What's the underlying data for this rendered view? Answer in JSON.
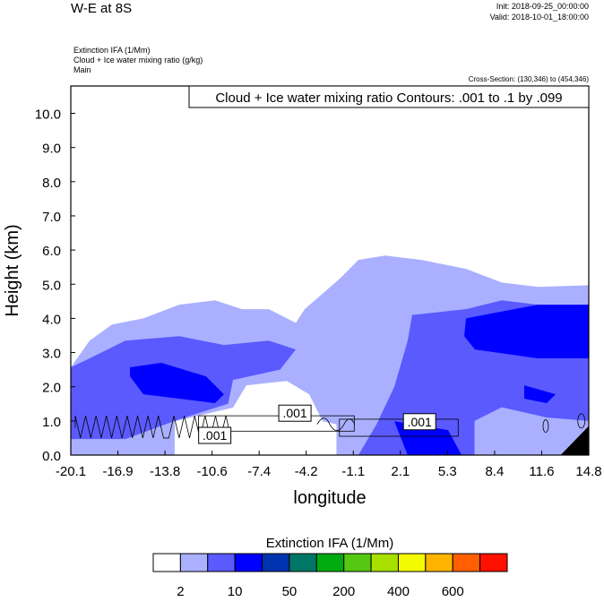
{
  "chart_data": {
    "type": "heatmap",
    "title": "W-E at 8S",
    "init": "Init: 2018-09-25_00:00:00",
    "valid": "Valid: 2018-10-01_18:00:00",
    "fields": [
      "Extinction IFA   (1/Mm)",
      "Cloud + Ice water mixing ratio   (g/kg)",
      "Main"
    ],
    "cross_section": "Cross-Section: (130,346) to (454,346)",
    "contour_info": "Cloud + Ice water mixing ratio Contours: .001 to .1 by .099",
    "xlabel": "longitude",
    "ylabel": "Height (km)",
    "xlim": [
      -20.1,
      14.8
    ],
    "ylim": [
      0,
      10.8
    ],
    "xticks": [
      "-20.1",
      "-16.9",
      "-13.8",
      "-10.6",
      "-7.4",
      "-4.2",
      "-1.1",
      "2.1",
      "5.3",
      "8.4",
      "11.6",
      "14.8"
    ],
    "yticks": [
      "0.0",
      "1.0",
      "2.0",
      "3.0",
      "4.0",
      "5.0",
      "6.0",
      "7.0",
      "8.0",
      "9.0",
      "10.0"
    ],
    "colorbar": {
      "title": "Extinction IFA  (1/Mm)",
      "colors": [
        "#ffffff",
        "#aab0ff",
        "#5a5aff",
        "#0000ff",
        "#0033b0",
        "#007766",
        "#00aa11",
        "#55c811",
        "#a8e000",
        "#f4fa00",
        "#ffb400",
        "#ff5f00",
        "#ff1100"
      ],
      "labels": [
        "2",
        "10",
        "50",
        "200",
        "400",
        "600"
      ]
    },
    "filled_regions": [
      {
        "level": "2-10",
        "color": "#aab0ff",
        "points": [
          [
            -20.1,
            0
          ],
          [
            -20.1,
            2.57
          ],
          [
            -18.83,
            3.35
          ],
          [
            -17.32,
            3.82
          ],
          [
            -15.21,
            4.0
          ],
          [
            -12.79,
            4.4
          ],
          [
            -10.38,
            4.53
          ],
          [
            -8.57,
            4.27
          ],
          [
            -6.76,
            4.27
          ],
          [
            -4.94,
            3.87
          ],
          [
            -4.34,
            4.27
          ],
          [
            -1.93,
            5.18
          ],
          [
            -0.72,
            5.71
          ],
          [
            1.09,
            5.84
          ],
          [
            3.51,
            5.71
          ],
          [
            6.53,
            5.45
          ],
          [
            8.94,
            5.05
          ],
          [
            11.36,
            4.92
          ],
          [
            14.8,
            4.97
          ],
          [
            14.8,
            0
          ]
        ]
      },
      {
        "level": "<2",
        "color": "#ffffff",
        "points": [
          [
            -13.1,
            0
          ],
          [
            -13.1,
            0.99
          ],
          [
            -9.17,
            1.39
          ],
          [
            -8.27,
            2.04
          ],
          [
            -5.55,
            2.17
          ],
          [
            -4.04,
            1.78
          ],
          [
            -3.13,
            0.99
          ],
          [
            -2.2,
            0.9
          ],
          [
            -2.2,
            0
          ]
        ]
      },
      {
        "level": "10-50",
        "color": "#5a5aff",
        "points": [
          [
            -20.1,
            0.47
          ],
          [
            -20.1,
            2.57
          ],
          [
            -18.83,
            2.83
          ],
          [
            -16.42,
            3.35
          ],
          [
            -12.79,
            3.48
          ],
          [
            -9.78,
            3.22
          ],
          [
            -6.76,
            3.35
          ],
          [
            -4.94,
            3.09
          ],
          [
            -6.0,
            2.5
          ],
          [
            -9.17,
            2.2
          ],
          [
            -9.5,
            1.5
          ],
          [
            -10.98,
            1.3
          ],
          [
            -13.1,
            1.0
          ],
          [
            -16.42,
            0.47
          ]
        ]
      },
      {
        "level": "10-50",
        "color": "#5a5aff",
        "points": [
          [
            -0.72,
            0
          ],
          [
            0.5,
            0.9
          ],
          [
            1.7,
            2.0
          ],
          [
            2.6,
            3.35
          ],
          [
            2.9,
            4.1
          ],
          [
            6.53,
            4.27
          ],
          [
            8.94,
            4.53
          ],
          [
            11.36,
            4.4
          ],
          [
            14.8,
            4.27
          ],
          [
            14.8,
            1.0
          ],
          [
            11.96,
            1.1
          ],
          [
            8.94,
            1.4
          ],
          [
            7.1,
            1.0
          ],
          [
            7.1,
            0
          ]
        ]
      },
      {
        "level": "50-200",
        "color": "#0000ff",
        "points": [
          [
            -16.11,
            2.57
          ],
          [
            -14.0,
            2.7
          ],
          [
            -10.98,
            2.3
          ],
          [
            -9.78,
            1.78
          ],
          [
            -10.38,
            1.52
          ],
          [
            -12.79,
            1.65
          ],
          [
            -15.21,
            1.78
          ],
          [
            -16.11,
            2.3
          ]
        ]
      },
      {
        "level": "50-200",
        "color": "#0000ff",
        "points": [
          [
            6.53,
            4.0
          ],
          [
            11.36,
            4.4
          ],
          [
            14.8,
            4.4
          ],
          [
            14.8,
            2.83
          ],
          [
            11.36,
            2.83
          ],
          [
            7.13,
            3.09
          ],
          [
            6.41,
            3.48
          ]
        ]
      },
      {
        "level": "50-200",
        "color": "#0000ff",
        "points": [
          [
            10.45,
            2.04
          ],
          [
            12.57,
            1.78
          ],
          [
            11.96,
            1.52
          ],
          [
            10.45,
            1.65
          ]
        ]
      },
      {
        "level": "50-200",
        "color": "#0000ff",
        "points": [
          [
            1.7,
            0.99
          ],
          [
            5.32,
            0.73
          ],
          [
            6.23,
            0
          ],
          [
            2.6,
            0
          ]
        ]
      },
      {
        "level": "terrain",
        "color": "#000000",
        "points": [
          [
            12.9,
            0
          ],
          [
            14.8,
            0.85
          ],
          [
            14.8,
            0
          ]
        ]
      }
    ],
    "contour_labels": [
      {
        "text": ".001",
        "x": -5.0,
        "y": 1.2
      },
      {
        "text": ".001",
        "x": -10.4,
        "y": 0.55
      },
      {
        "text": ".001",
        "x": 3.4,
        "y": 0.95
      }
    ]
  }
}
